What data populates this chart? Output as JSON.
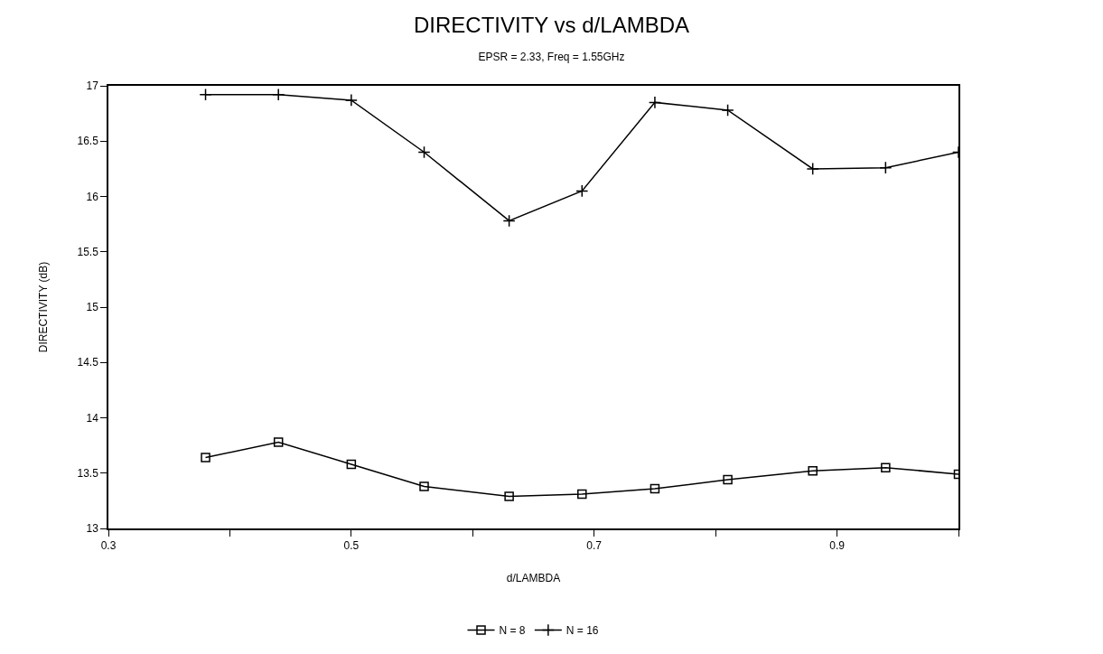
{
  "chart_data": {
    "type": "line",
    "title": "DIRECTIVITY vs d/LAMBDA",
    "subtitle": "EPSR = 2.33, Freq = 1.55GHz",
    "xlabel": "d/LAMBDA",
    "ylabel": "DIRECTIVITY (dB)",
    "x": [
      0.38,
      0.44,
      0.5,
      0.56,
      0.63,
      0.69,
      0.75,
      0.81,
      0.88,
      0.94,
      1.0
    ],
    "series": [
      {
        "name": "N = 8",
        "color": "#000000",
        "marker": "square",
        "values": [
          13.64,
          13.78,
          13.58,
          13.38,
          13.29,
          13.31,
          13.36,
          13.44,
          13.52,
          13.55,
          13.49
        ]
      },
      {
        "name": "N = 16",
        "color": "#000000",
        "marker": "cross",
        "values": [
          16.92,
          16.92,
          16.87,
          16.4,
          15.78,
          16.05,
          16.85,
          16.78,
          16.25,
          16.26,
          16.4
        ]
      }
    ],
    "xlim": [
      0.3,
      1.0
    ],
    "xticks": [
      0.3,
      {
        "value": 0.4,
        "label": null
      },
      0.5,
      {
        "value": 0.6,
        "label": null
      },
      0.7,
      {
        "value": 0.8,
        "label": null
      },
      0.9,
      {
        "value": 1.0,
        "label": null
      }
    ],
    "ylim": [
      13,
      17
    ],
    "yticks": [
      13,
      13.5,
      14,
      14.5,
      15,
      15.5,
      16,
      16.5,
      17
    ],
    "legend": "bottom",
    "line_style": "solid"
  }
}
